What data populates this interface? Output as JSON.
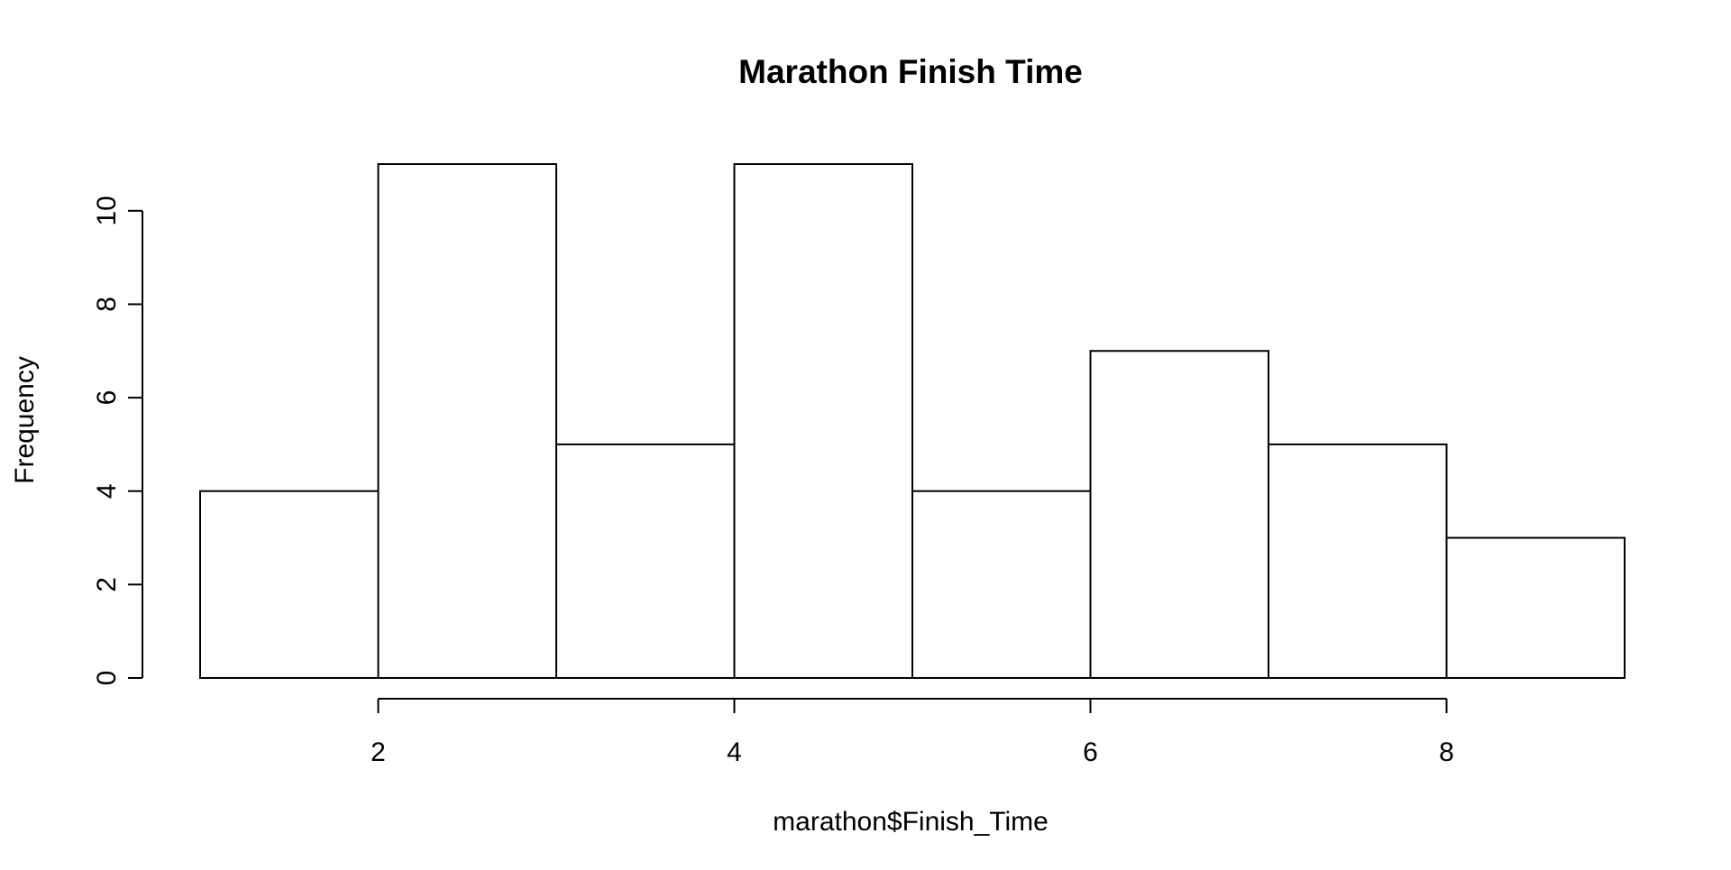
{
  "chart_data": {
    "type": "bar",
    "title": "Marathon Finish Time",
    "xlabel": "marathon$Finish_Time",
    "ylabel": "Frequency",
    "bins": [
      {
        "from": 1,
        "to": 2,
        "count": 4
      },
      {
        "from": 2,
        "to": 3,
        "count": 11
      },
      {
        "from": 3,
        "to": 4,
        "count": 5
      },
      {
        "from": 4,
        "to": 5,
        "count": 11
      },
      {
        "from": 5,
        "to": 6,
        "count": 4
      },
      {
        "from": 6,
        "to": 7,
        "count": 7
      },
      {
        "from": 7,
        "to": 8,
        "count": 5
      },
      {
        "from": 8,
        "to": 9,
        "count": 3
      }
    ],
    "x_ticks": [
      2,
      4,
      6,
      8
    ],
    "y_ticks": [
      0,
      2,
      4,
      6,
      8,
      10
    ],
    "xlim": [
      1,
      9
    ],
    "ylim": [
      0,
      11
    ],
    "grid": false,
    "bar_fill": "#ffffff",
    "bar_stroke": "#000000"
  }
}
